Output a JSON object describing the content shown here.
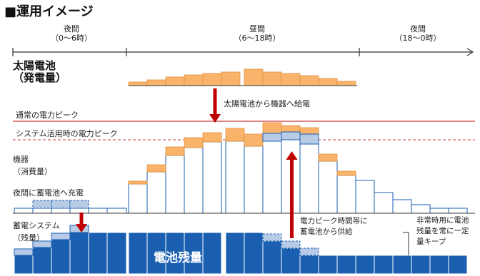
{
  "title": "■運用イメージ",
  "periods": [
    {
      "name": "夜間",
      "range": "（0〜6時）"
    },
    {
      "name": "昼間",
      "range": "（6〜18時）"
    },
    {
      "name": "夜間",
      "range": "（18〜0時）"
    }
  ],
  "rows": {
    "solar": "太陽電池",
    "solar_sub": "（発電量）",
    "normal_peak": "通常の電力ピーク",
    "system_peak": "システム活用時の電力ピーク",
    "device": "機器",
    "device_sub": "（消費量）",
    "night_charge": "夜間に蓄電池へ充電",
    "storage": "蓄電システム",
    "storage_sub": "（残量）"
  },
  "annotations": {
    "solar_to_device": "太陽電池から機器へ給電",
    "peak_supply_line1": "電力ピーク時間帯に",
    "peak_supply_line2": "蓄電池から供給",
    "emergency_line1": "非常時用に電池",
    "emergency_line2": "残量を常に一定",
    "emergency_line3": "量キープ",
    "battery_label": "電池残量"
  },
  "colors": {
    "solar_fill": "#f9b36b",
    "storage_fill": "#1a5fb0",
    "storage_light": "#b8cbe6",
    "device_stroke": "#1a5fb0",
    "arrow_red": "#c00000",
    "peak_red": "#d23a3a"
  }
}
